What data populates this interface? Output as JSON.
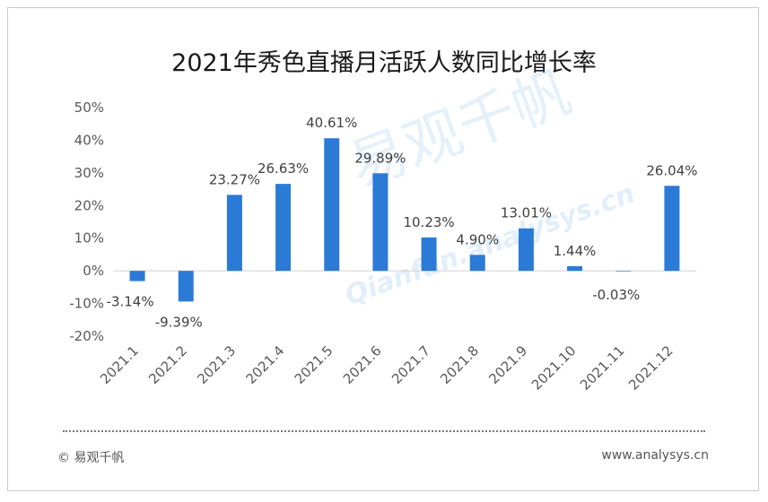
{
  "title": "2021年秀色直播月活跃人数同比增长率",
  "watermark": {
    "chinese": "易观千帆",
    "english": "Qianfan.analysys.cn"
  },
  "footer": {
    "copyright_symbol": "©",
    "source": "易观千帆",
    "url": "www.analysys.cn"
  },
  "colors": {
    "bar": "#2b7bd6",
    "axis_text": "#595959",
    "label_text": "#404040"
  },
  "chart_data": {
    "type": "bar",
    "title": "2021年秀色直播月活跃人数同比增长率",
    "categories": [
      "2021.1",
      "2021.2",
      "2021.3",
      "2021.4",
      "2021.5",
      "2021.6",
      "2021.7",
      "2021.8",
      "2021.9",
      "2021.10",
      "2021.11",
      "2021.12"
    ],
    "values": [
      -3.14,
      -9.39,
      23.27,
      26.63,
      40.61,
      29.89,
      10.23,
      4.9,
      13.01,
      1.44,
      -0.03,
      26.04
    ],
    "value_labels": [
      "-3.14%",
      "-9.39%",
      "23.27%",
      "26.63%",
      "40.61%",
      "29.89%",
      "10.23%",
      "4.90%",
      "13.01%",
      "1.44%",
      "-0.03%",
      "26.04%"
    ],
    "yticks": [
      50,
      40,
      30,
      20,
      10,
      0,
      -10,
      -20
    ],
    "ytick_labels": [
      "50%",
      "40%",
      "30%",
      "20%",
      "10%",
      "0%",
      "-10%",
      "-20%"
    ],
    "ylim": [
      -20,
      50
    ],
    "grid": false,
    "legend": "none"
  }
}
